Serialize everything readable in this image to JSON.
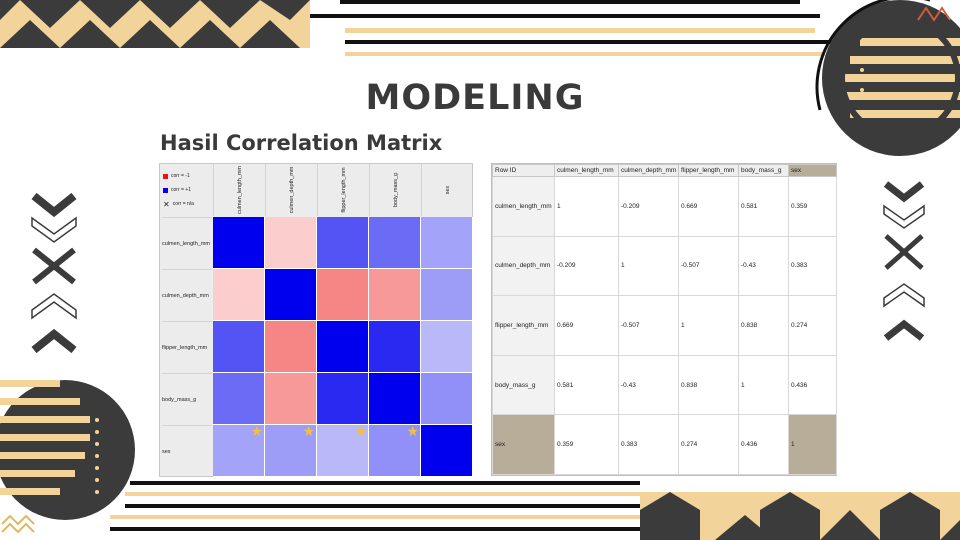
{
  "slide": {
    "title": "MODELING",
    "subtitle": "Hasil Correlation  Matrix"
  },
  "legend": {
    "neg": "corr = -1",
    "pos": "corr = +1",
    "na": "corr = n/a"
  },
  "variables": [
    "culmen_length_mm",
    "culmen_depth_mm",
    "flipper_length_mm",
    "body_mass_g",
    "sex"
  ],
  "heatmap_labels": {
    "columns": [
      "culmen_length_mm",
      "culmen_depth_mm",
      "flipper_length_mm",
      "body_mass_g",
      "sex"
    ],
    "rows": [
      "culmen_length_mm",
      "culmen_depth_mm",
      "flipper_length_mm",
      "body_mass_g",
      "sex"
    ]
  },
  "table": {
    "row_id_header": "Row ID",
    "headers": [
      "culmen_length_mm",
      "culmen_depth_mm",
      "flipper_length_mm",
      "body_mass_g",
      "sex"
    ],
    "rows": [
      {
        "id": "culmen_length_mm",
        "values": [
          "1",
          "-0.209",
          "0.669",
          "0.581",
          "0.359"
        ]
      },
      {
        "id": "culmen_depth_mm",
        "values": [
          "-0.209",
          "1",
          "-0.507",
          "-0.43",
          "0.383"
        ]
      },
      {
        "id": "flipper_length_mm",
        "values": [
          "0.669",
          "-0.507",
          "1",
          "0.838",
          "0.274"
        ]
      },
      {
        "id": "body_mass_g",
        "values": [
          "0.581",
          "-0.43",
          "0.838",
          "1",
          "0.436"
        ]
      },
      {
        "id": "sex",
        "values": [
          "0.359",
          "0.383",
          "0.274",
          "0.436",
          "1"
        ]
      }
    ]
  },
  "chart_data": {
    "type": "heatmap",
    "x": [
      "culmen_length_mm",
      "culmen_depth_mm",
      "flipper_length_mm",
      "body_mass_g",
      "sex"
    ],
    "y": [
      "culmen_length_mm",
      "culmen_depth_mm",
      "flipper_length_mm",
      "body_mass_g",
      "sex"
    ],
    "values": [
      [
        1,
        -0.209,
        0.669,
        0.581,
        0.359
      ],
      [
        -0.209,
        1,
        -0.507,
        -0.43,
        0.383
      ],
      [
        0.669,
        -0.507,
        1,
        0.838,
        0.274
      ],
      [
        0.581,
        -0.43,
        0.838,
        1,
        0.436
      ],
      [
        0.359,
        0.383,
        0.274,
        0.436,
        1
      ]
    ],
    "starred_cells": [
      [
        4,
        0
      ],
      [
        4,
        1
      ],
      [
        4,
        2
      ],
      [
        4,
        3
      ]
    ],
    "colors": {
      "neg": "#ee1111",
      "pos": "#0000ee",
      "zero": "#ffffff"
    }
  },
  "colors": {
    "dark": "#3b3b3b",
    "gold": "#f2d49a",
    "highlight": "#b8ad98"
  }
}
